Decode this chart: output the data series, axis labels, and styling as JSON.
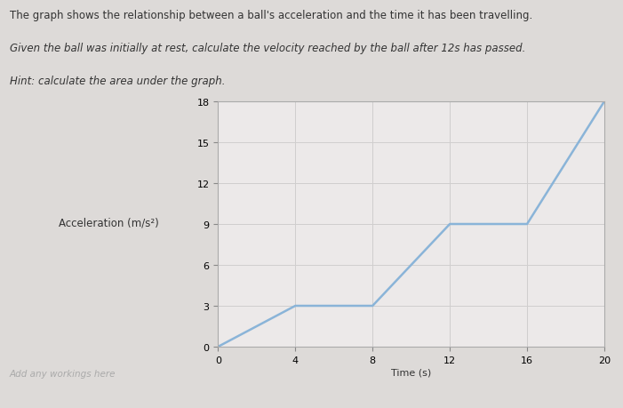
{
  "title_line1": "The graph shows the relationship between a ball's acceleration and the time it has been travelling.",
  "title_line2": "Given the ball was initially at rest, calculate the velocity reached by the ball after 12s has passed.",
  "title_line3": "Hint: calculate the area under the graph.",
  "xlabel": "Time (s)",
  "ylabel": "Acceleration (m/s²)",
  "x_data": [
    0,
    4,
    8,
    12,
    16,
    20
  ],
  "y_data": [
    0,
    3,
    3,
    9,
    9,
    18
  ],
  "xlim": [
    0,
    20
  ],
  "ylim": [
    0,
    18
  ],
  "xticks": [
    0,
    4,
    8,
    12,
    16,
    20
  ],
  "yticks": [
    0,
    3,
    6,
    9,
    12,
    15,
    18
  ],
  "line_color": "#8ab4d8",
  "line_width": 1.8,
  "grid_color": "#d0cece",
  "bg_color": "#ece9e9",
  "fig_bg_color": "#dddad8",
  "text_color": "#333333",
  "workings_text": "Add any workings here",
  "title_fontsize": 8.5,
  "tick_fontsize": 8,
  "ylabel_fontsize": 8.5,
  "xlabel_fontsize": 8
}
